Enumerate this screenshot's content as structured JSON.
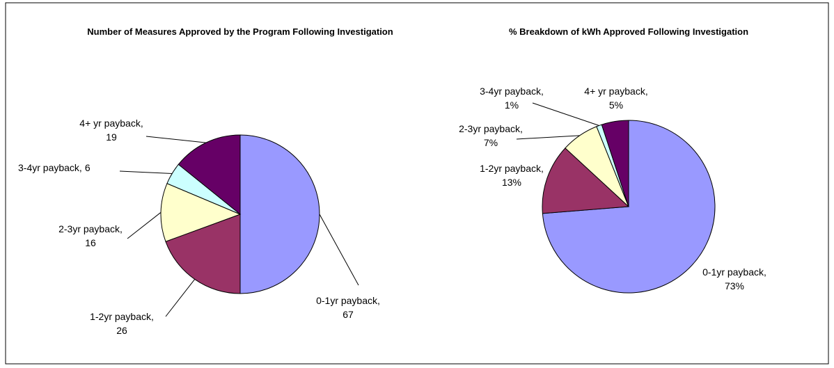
{
  "chart_data": [
    {
      "type": "pie",
      "title": "Number of Measures Approved by the Program Following Investigation",
      "categories": [
        "0-1yr payback,",
        "1-2yr payback,",
        "2-3yr payback,",
        "3-4yr payback,",
        "4+ yr payback,"
      ],
      "values": [
        67,
        26,
        16,
        6,
        19
      ],
      "colors": [
        "#9999ff",
        "#993366",
        "#ffffcc",
        "#ccffff",
        "#660066"
      ]
    },
    {
      "type": "pie",
      "title": "% Breakdown of kWh Approved Following Investigation",
      "categories": [
        "0-1yr payback,",
        "1-2yr payback,",
        "2-3yr payback,",
        "3-4yr payback,",
        "4+ yr payback,"
      ],
      "values": [
        73,
        13,
        7,
        1,
        5
      ],
      "value_labels": [
        "73%",
        "13%",
        "7%",
        "1%",
        "5%"
      ],
      "colors": [
        "#9999ff",
        "#993366",
        "#ffffcc",
        "#ccffff",
        "#660066"
      ]
    }
  ]
}
